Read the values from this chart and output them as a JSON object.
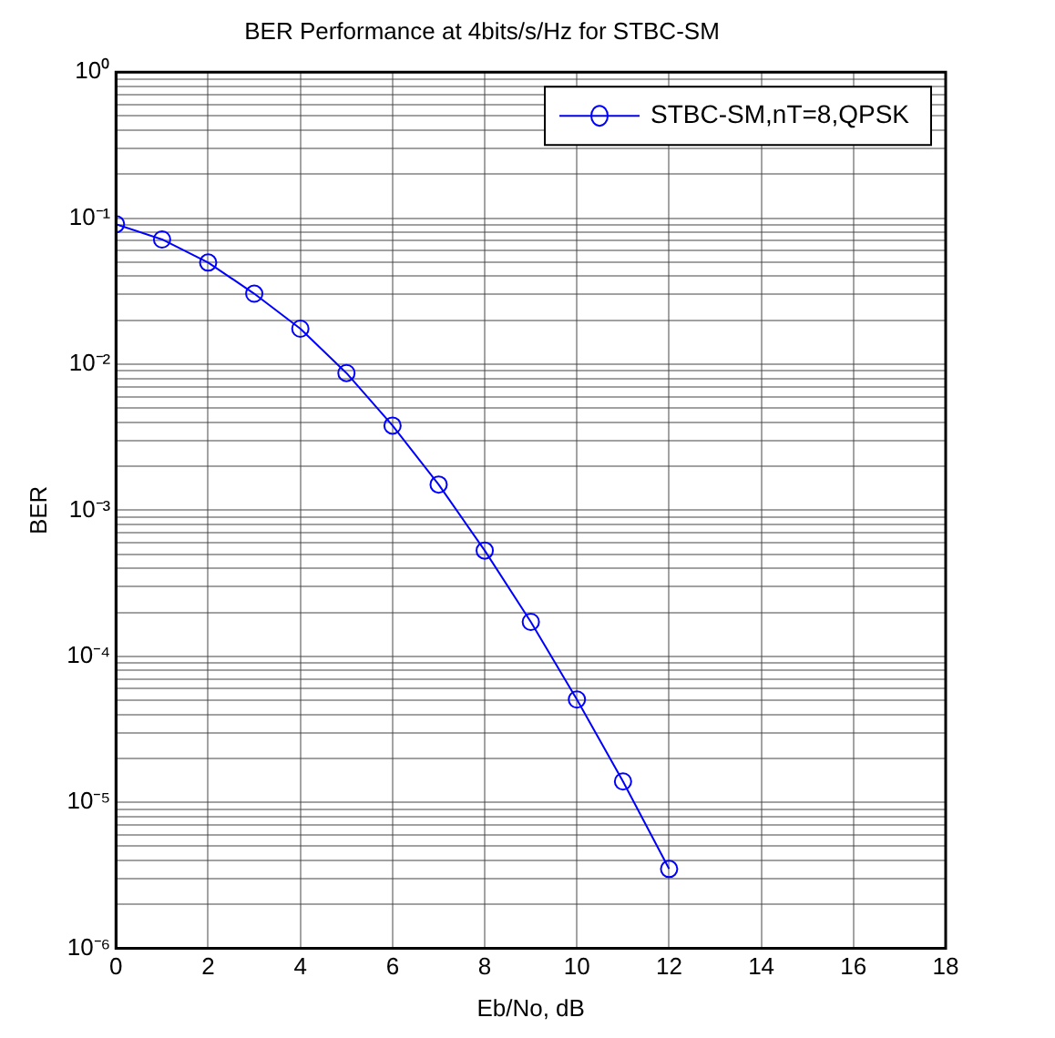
{
  "chart_data": {
    "type": "line",
    "title": "BER Performance at 4bits/s/Hz for STBC-SM",
    "xlabel": "Eb/No, dB",
    "ylabel": "BER",
    "x": [
      0,
      1,
      2,
      3,
      4,
      5,
      6,
      7,
      8,
      9,
      10,
      11,
      12
    ],
    "series": [
      {
        "name": "STBC-SM,nT=8,QPSK",
        "color": "#0000ff",
        "values": [
          0.091,
          0.0715,
          0.0497,
          0.0304,
          0.0175,
          0.0087,
          0.0038,
          0.0015,
          0.00053,
          0.000172,
          5.06e-05,
          1.39e-05,
          3.5e-06
        ]
      }
    ],
    "xlim": [
      0,
      18
    ],
    "xticks": [
      0,
      2,
      4,
      6,
      8,
      10,
      12,
      14,
      16,
      18
    ],
    "ylim": [
      1e-06,
      1
    ],
    "yticks": [
      {
        "value": 1e-06,
        "label": "10⁻⁶"
      },
      {
        "value": 2e-06,
        "label": null
      },
      {
        "value": 3e-06,
        "label": null
      },
      {
        "value": 4e-06,
        "label": null
      },
      {
        "value": 5e-06,
        "label": null
      },
      {
        "value": 6e-06,
        "label": null
      },
      {
        "value": 7e-06,
        "label": null
      },
      {
        "value": 8e-06,
        "label": null
      },
      {
        "value": 9e-06,
        "label": null
      },
      {
        "value": 1e-05,
        "label": "10⁻⁵"
      },
      {
        "value": 2e-05,
        "label": null
      },
      {
        "value": 3e-05,
        "label": null
      },
      {
        "value": 4e-05,
        "label": null
      },
      {
        "value": 5e-05,
        "label": null
      },
      {
        "value": 6e-05,
        "label": null
      },
      {
        "value": 7e-05,
        "label": null
      },
      {
        "value": 8e-05,
        "label": null
      },
      {
        "value": 9e-05,
        "label": null
      },
      {
        "value": 0.0001,
        "label": "10⁻⁴"
      },
      {
        "value": 0.0002,
        "label": null
      },
      {
        "value": 0.0003,
        "label": null
      },
      {
        "value": 0.0004,
        "label": null
      },
      {
        "value": 0.0005,
        "label": null
      },
      {
        "value": 0.0006,
        "label": null
      },
      {
        "value": 0.0007,
        "label": null
      },
      {
        "value": 0.0008,
        "label": null
      },
      {
        "value": 0.0009,
        "label": null
      },
      {
        "value": 0.001,
        "label": "10⁻³"
      },
      {
        "value": 0.002,
        "label": null
      },
      {
        "value": 0.003,
        "label": null
      },
      {
        "value": 0.004,
        "label": null
      },
      {
        "value": 0.005,
        "label": null
      },
      {
        "value": 0.006,
        "label": null
      },
      {
        "value": 0.007,
        "label": null
      },
      {
        "value": 0.008,
        "label": null
      },
      {
        "value": 0.009,
        "label": null
      },
      {
        "value": 0.01,
        "label": "10⁻²"
      },
      {
        "value": 0.02,
        "label": null
      },
      {
        "value": 0.03,
        "label": null
      },
      {
        "value": 0.04,
        "label": null
      },
      {
        "value": 0.05,
        "label": null
      },
      {
        "value": 0.06,
        "label": null
      },
      {
        "value": 0.07,
        "label": null
      },
      {
        "value": 0.08,
        "label": null
      },
      {
        "value": 0.09,
        "label": null
      },
      {
        "value": 0.1,
        "label": "10⁻¹"
      },
      {
        "value": 0.2,
        "label": null
      },
      {
        "value": 0.3,
        "label": null
      },
      {
        "value": 0.4,
        "label": null
      },
      {
        "value": 0.5,
        "label": null
      },
      {
        "value": 0.6,
        "label": null
      },
      {
        "value": 0.7,
        "label": null
      },
      {
        "value": 0.8,
        "label": null
      },
      {
        "value": 0.9,
        "label": null
      },
      {
        "value": 1,
        "label": "10⁰"
      }
    ],
    "log": "y",
    "grid": true,
    "legend": "top right",
    "marker": "circle",
    "line_style": "solid"
  }
}
